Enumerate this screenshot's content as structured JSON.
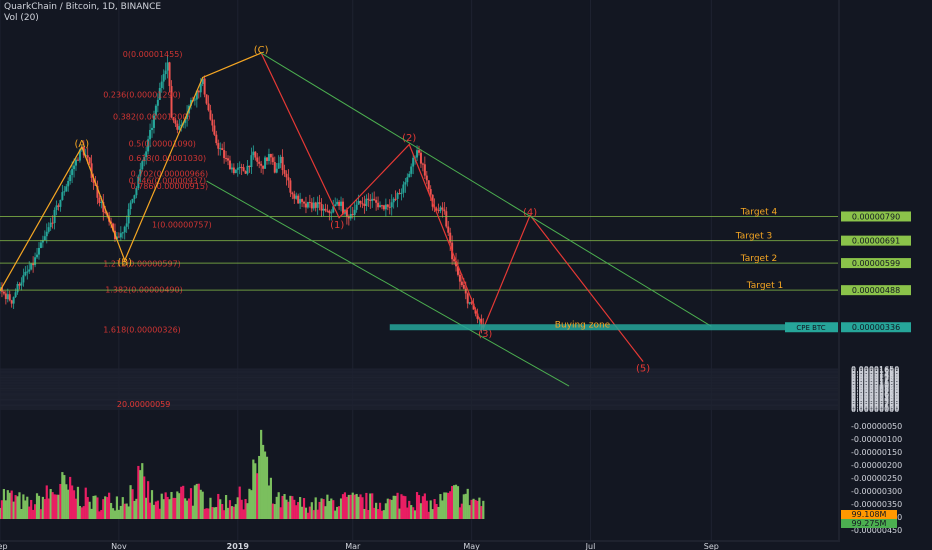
{
  "header": {
    "title": "QuarkChain / Bitcoin, 1D, BINANCE",
    "volume_label": "Vol (20)"
  },
  "chart_data": {
    "type": "candlestick",
    "symbol": "QuarkChain / Bitcoin",
    "interval": "1D",
    "exchange": "BINANCE",
    "ylim": [
      5e-08,
      1.665e-05
    ],
    "y_ticks": [
      "0.00001650",
      "0.00001600",
      "0.00001550",
      "0.00001500",
      "0.00001450",
      "0.00001400",
      "0.00001350",
      "0.00001300",
      "0.00001250",
      "0.00001200",
      "0.00001150",
      "0.00001100",
      "0.00001050",
      "0.00001000",
      "0.00000950",
      "0.00000900",
      "0.00000850",
      "0.00000800",
      "0.00000750",
      "0.00000700",
      "0.00000650",
      "0.00000600",
      "0.00000550",
      "0.00000500",
      "0.00000450",
      "0.00000400",
      "0.00000350",
      "0.00000300",
      "0.00000250",
      "0.00000200",
      "0.00000150",
      "0.00000100",
      "0.00000050",
      "0.00000000"
    ],
    "volume_ticks": [
      "-0.00000050",
      "-0.00000100",
      "-0.00000150",
      "-0.00000200",
      "-0.00000250",
      "-0.00000300",
      "-0.00000350",
      "-0.00000400",
      "-0.00000450"
    ],
    "x_ticks": [
      {
        "label": "Sep",
        "t": 0
      },
      {
        "label": "Nov",
        "t": 61
      },
      {
        "label": "2019",
        "t": 122
      },
      {
        "label": "Mar",
        "t": 181
      },
      {
        "label": "May",
        "t": 242
      },
      {
        "label": "Jul",
        "t": 303
      },
      {
        "label": "Sep",
        "t": 365
      }
    ],
    "x_range": [
      0,
      430
    ],
    "price_path": [
      [
        0,
        4.85
      ],
      [
        6,
        4.45
      ],
      [
        10,
        5.2
      ],
      [
        16,
        5.8
      ],
      [
        24,
        7.2
      ],
      [
        32,
        8.8
      ],
      [
        38,
        10.0
      ],
      [
        42,
        10.7
      ],
      [
        45,
        10.2
      ],
      [
        50,
        8.8
      ],
      [
        55,
        7.8
      ],
      [
        60,
        6.9
      ],
      [
        64,
        7.5
      ],
      [
        70,
        9.2
      ],
      [
        75,
        10.6
      ],
      [
        80,
        12.3
      ],
      [
        84,
        13.9
      ],
      [
        86,
        14.2
      ],
      [
        88,
        12.0
      ],
      [
        92,
        11.5
      ],
      [
        98,
        12.6
      ],
      [
        104,
        13.4
      ],
      [
        110,
        11.1
      ],
      [
        116,
        10.2
      ],
      [
        120,
        9.8
      ],
      [
        126,
        9.8
      ],
      [
        130,
        10.4
      ],
      [
        134,
        9.9
      ],
      [
        138,
        10.4
      ],
      [
        141,
        9.8
      ],
      [
        144,
        10.2
      ],
      [
        150,
        8.8
      ],
      [
        156,
        8.3
      ],
      [
        162,
        8.4
      ],
      [
        168,
        8.0
      ],
      [
        174,
        8.5
      ],
      [
        178,
        7.85
      ],
      [
        184,
        8.4
      ],
      [
        190,
        8.6
      ],
      [
        196,
        8.3
      ],
      [
        202,
        8.5
      ],
      [
        208,
        9.2
      ],
      [
        214,
        10.7
      ],
      [
        218,
        9.7
      ],
      [
        222,
        8.3
      ],
      [
        228,
        8.0
      ],
      [
        232,
        6.3
      ],
      [
        236,
        5.2
      ],
      [
        240,
        4.5
      ],
      [
        244,
        3.9
      ],
      [
        248,
        3.3
      ]
    ],
    "volume_path": [
      [
        0,
        5.5
      ],
      [
        16,
        3.0
      ],
      [
        32,
        7.0
      ],
      [
        48,
        3.5
      ],
      [
        64,
        4.5
      ],
      [
        72,
        8.5
      ],
      [
        80,
        3.0
      ],
      [
        96,
        6.0
      ],
      [
        112,
        3.5
      ],
      [
        128,
        5.0
      ],
      [
        134,
        15.5
      ],
      [
        140,
        4.0
      ],
      [
        160,
        3.0
      ],
      [
        176,
        4.0
      ],
      [
        200,
        3.5
      ],
      [
        208,
        5.0
      ],
      [
        222,
        3.0
      ],
      [
        234,
        5.5
      ],
      [
        248,
        3.5
      ]
    ],
    "volume_max": 20.0,
    "current_price_label": "99.108M",
    "current_volume_label": "99.275M",
    "fibonacci": [
      {
        "label": "0(0.00001455)",
        "value": 14.55
      },
      {
        "label": "0.236(0.00001290)",
        "value": 12.9
      },
      {
        "label": "0.382(0.00001200)",
        "value": 12.0
      },
      {
        "label": "0.5(0.00001090)",
        "value": 10.9
      },
      {
        "label": "0.618(0.00001030)",
        "value": 10.3
      },
      {
        "label": "0.702(0.00000966)",
        "value": 9.66
      },
      {
        "label": "0.746(0.00000937)",
        "value": 9.37
      },
      {
        "label": "0.786(0.00000915)",
        "value": 9.15
      },
      {
        "label": "1(0.00000757)",
        "value": 7.57
      },
      {
        "label": "1.272(0.00000597)",
        "value": 5.97
      },
      {
        "label": "1.382(0.00000490)",
        "value": 4.9
      },
      {
        "label": "1.618(0.00000326)",
        "value": 3.26
      }
    ],
    "volume_top_label": "20.00000059",
    "targets": [
      {
        "label": "Target 1",
        "value": 4.88,
        "price": "0.00000488"
      },
      {
        "label": "Target 2",
        "value": 5.99,
        "price": "0.00000599"
      },
      {
        "label": "Target 3",
        "value": 6.91,
        "price": "0.00000691"
      },
      {
        "label": "Target 4",
        "value": 7.9,
        "price": "0.00000790"
      }
    ],
    "buying_zone": {
      "label": "Buying zone",
      "value": 3.36,
      "t0": 200,
      "t1": 403,
      "tag": "CPE BTC",
      "price": "0.00000336"
    },
    "wave_labels": [
      {
        "label": "(A)",
        "t": 42,
        "v": 10.75,
        "color": "#f5a623"
      },
      {
        "label": "(B)",
        "t": 64,
        "v": 5.9,
        "color": "#f5a623"
      },
      {
        "label": "(C)",
        "t": 134,
        "v": 14.6,
        "color": "#f5a623"
      },
      {
        "label": "(1)",
        "t": 173,
        "v": 7.43,
        "color": "#e53935"
      },
      {
        "label": "(2)",
        "t": 210,
        "v": 11.0,
        "color": "#e53935"
      },
      {
        "label": "(3)",
        "t": 249,
        "v": 2.95,
        "color": "#e53935"
      },
      {
        "label": "(4)",
        "t": 272,
        "v": 7.95,
        "color": "#e53935"
      },
      {
        "label": "(5)",
        "t": 330,
        "v": 1.55,
        "color": "#e53935"
      }
    ],
    "orange_path": [
      [
        0,
        4.85
      ],
      [
        42,
        10.75
      ],
      [
        64,
        6.1
      ],
      [
        104,
        13.6
      ],
      [
        134,
        14.6
      ]
    ],
    "red_path": [
      [
        134,
        14.6
      ],
      [
        174,
        7.85
      ],
      [
        210,
        10.85
      ],
      [
        248,
        3.3
      ],
      [
        272,
        7.95
      ],
      [
        330,
        1.95
      ]
    ],
    "channel_upper": [
      [
        134,
        14.6
      ],
      [
        365,
        3.4
      ]
    ],
    "channel_lower": [
      [
        106,
        9.35
      ],
      [
        292,
        0.95
      ]
    ],
    "colors": {
      "background": "#131722",
      "up": "#26a69a",
      "down": "#ef5350",
      "volume_up": "#7bbf5e",
      "volume_down": "#e91e63",
      "fib": "#e53935",
      "orange": "#f5a623",
      "channel": "#4caf50",
      "target_line": "#8bc34a",
      "buying_zone": "#26a69a",
      "axis_text": "#d1d4dc",
      "tag_bg": "#8bc34a"
    }
  }
}
